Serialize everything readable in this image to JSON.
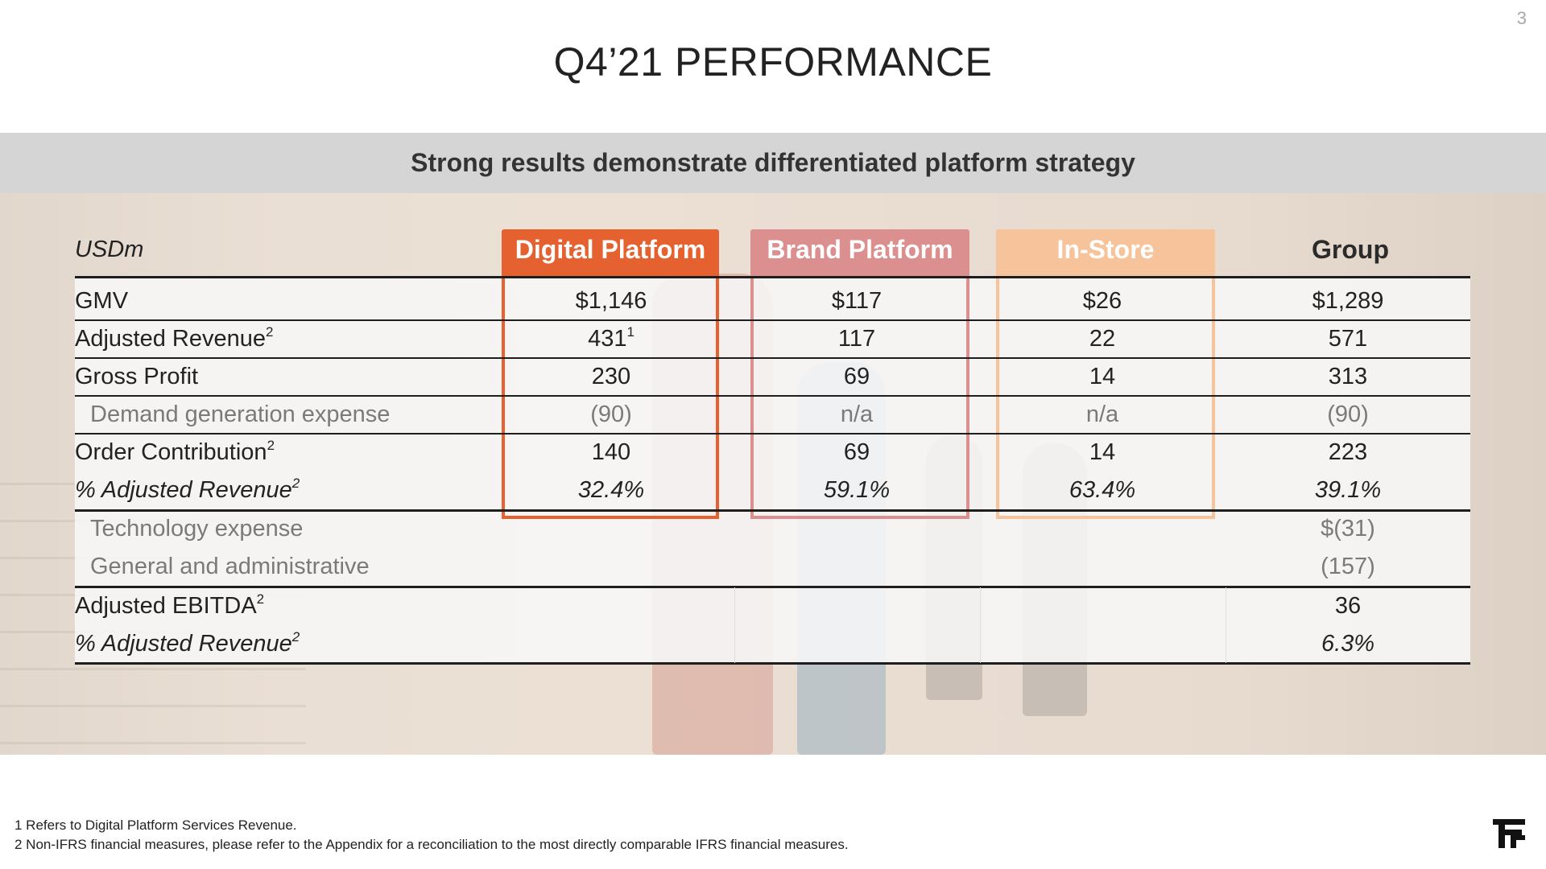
{
  "page_number": "3",
  "title": "Q4’21 PERFORMANCE",
  "subtitle": "Strong results demonstrate differentiated platform strategy",
  "table": {
    "unit_label": "USDm",
    "columns": [
      "Digital Platform",
      "Brand Platform",
      "In-Store",
      "Group"
    ],
    "column_colors": [
      "#e5612f",
      "#dc8f8f",
      "#f7c39a",
      "#ffffff"
    ],
    "rows": [
      {
        "label": "GMV",
        "values": [
          "$1,146",
          "$117",
          "$26",
          "$1,289"
        ]
      },
      {
        "label": "Adjusted Revenue",
        "label_sup": "2",
        "values": [
          "431",
          "117",
          "22",
          "571"
        ],
        "first_value_sup": "1"
      },
      {
        "label": "Gross Profit",
        "values": [
          "230",
          "69",
          "14",
          "313"
        ]
      },
      {
        "label": "Demand generation expense",
        "values": [
          "(90)",
          "n/a",
          "n/a",
          "(90)"
        ]
      },
      {
        "label": "Order Contribution",
        "label_sup": "2",
        "values": [
          "140",
          "69",
          "14",
          "223"
        ]
      },
      {
        "label": "% Adjusted Revenue",
        "label_sup": "2",
        "values": [
          "32.4%",
          "59.1%",
          "63.4%",
          "39.1%"
        ]
      },
      {
        "label": "Technology expense",
        "values": [
          "",
          "",
          "",
          "$(31)"
        ]
      },
      {
        "label": "General and administrative",
        "values": [
          "",
          "",
          "",
          "(157)"
        ]
      },
      {
        "label": "Adjusted EBITDA",
        "label_sup": "2",
        "values": [
          "",
          "",
          "",
          "36"
        ]
      },
      {
        "label": "% Adjusted Revenue",
        "label_sup": "2",
        "values": [
          "",
          "",
          "",
          "6.3%"
        ]
      }
    ]
  },
  "footnotes": [
    "1 Refers to Digital Platform Services Revenue.",
    "2 Non-IFRS financial measures, please refer to the Appendix for a reconciliation to the most directly comparable IFRS financial measures."
  ],
  "logo_icon": "ff-logo-icon"
}
